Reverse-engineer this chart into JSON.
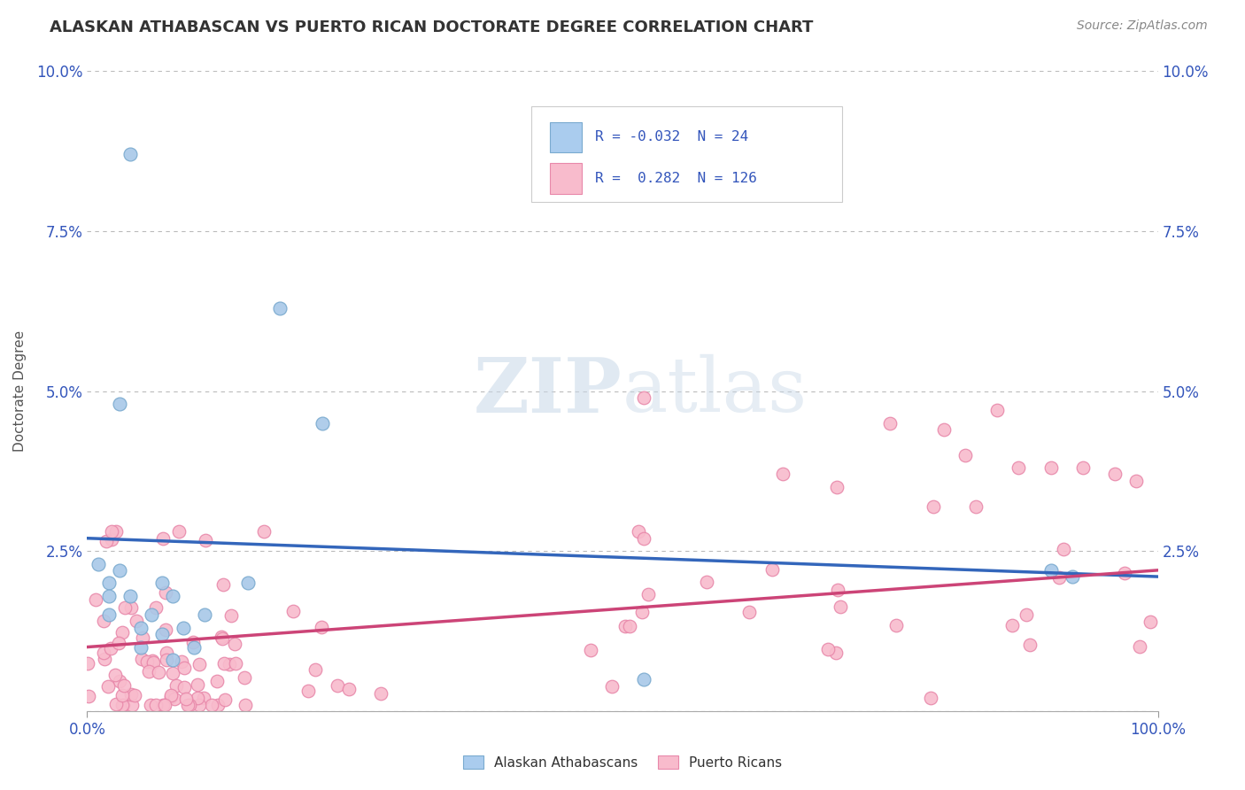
{
  "title": "ALASKAN ATHABASCAN VS PUERTO RICAN DOCTORATE DEGREE CORRELATION CHART",
  "source": "Source: ZipAtlas.com",
  "ylabel": "Doctorate Degree",
  "xlim": [
    0,
    1.0
  ],
  "ylim": [
    0,
    0.1
  ],
  "ytick_vals": [
    0.0,
    0.025,
    0.05,
    0.075,
    0.1
  ],
  "legend_R_blue": "-0.032",
  "legend_N_blue": "24",
  "legend_R_pink": "0.282",
  "legend_N_pink": "126",
  "blue_scatter_color": "#A8C8E8",
  "blue_edge_color": "#7AAACF",
  "pink_scatter_color": "#F8BBCC",
  "pink_edge_color": "#E888AA",
  "trend_blue": "#3366BB",
  "trend_pink": "#CC4477",
  "legend_blue_fill": "#AACCEE",
  "legend_blue_edge": "#7AAACF",
  "legend_pink_fill": "#F8BBCC",
  "legend_pink_edge": "#E888AA",
  "text_color": "#3355BB",
  "watermark_color": "#DDDDEE",
  "background": "#FFFFFF",
  "blue_trend_start": 0.027,
  "blue_trend_end": 0.021,
  "pink_trend_start": 0.01,
  "pink_trend_end": 0.022
}
